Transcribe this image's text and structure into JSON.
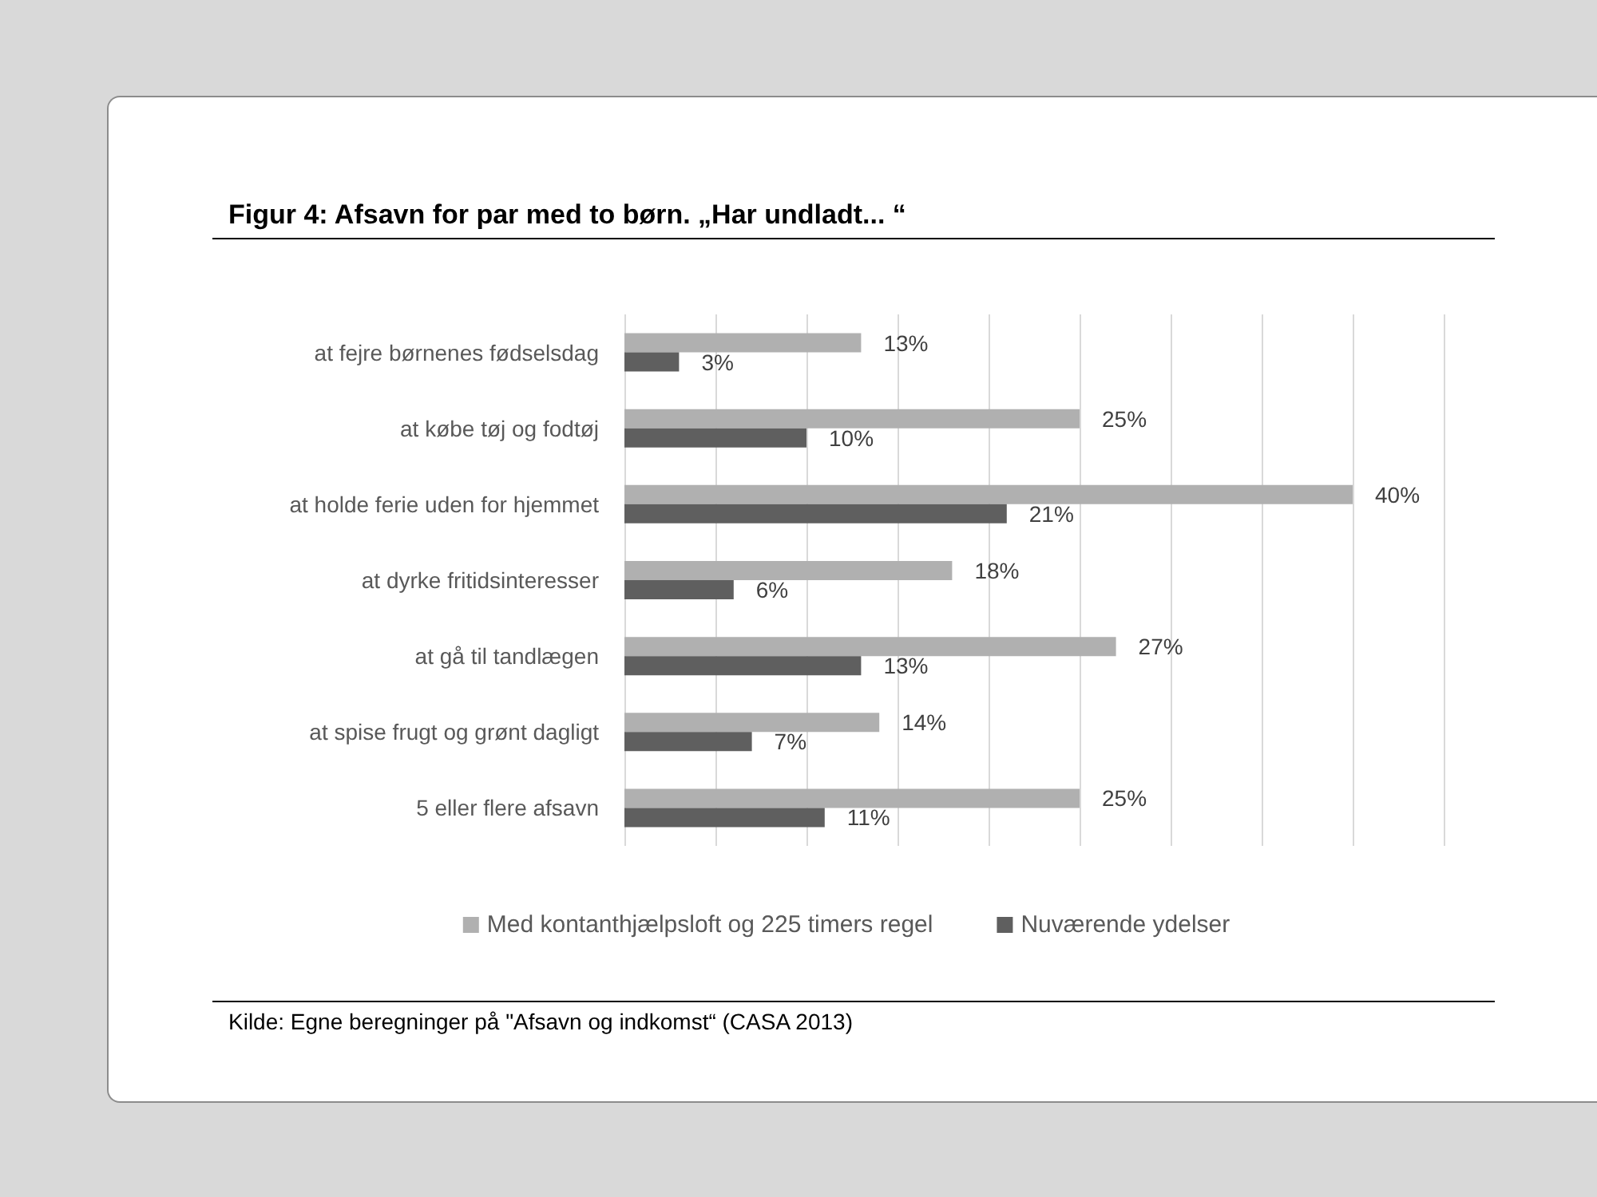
{
  "chart_data": {
    "type": "bar",
    "orientation": "horizontal",
    "title": "Figur 4: Afsavn for par med to børn. „Har undladt... “",
    "categories": [
      "at fejre børnenes fødselsdag",
      "at købe tøj og fodtøj",
      "at holde ferie uden for hjemmet",
      "at dyrke fritidsinteresser",
      "at gå til tandlægen",
      "at spise frugt og grønt dagligt",
      "5 eller flere afsavn"
    ],
    "series": [
      {
        "name": "Med kontanthjælpsloft og 225 timers regel",
        "color": "#b0b0b0",
        "values": [
          13,
          25,
          40,
          18,
          27,
          14,
          25
        ],
        "value_labels": [
          "13%",
          "25%",
          "40%",
          "18%",
          "27%",
          "14%",
          "25%"
        ]
      },
      {
        "name": "Nuværende ydelser",
        "color": "#5f5f5f",
        "values": [
          3,
          10,
          21,
          6,
          13,
          7,
          11
        ],
        "value_labels": [
          "3%",
          "10%",
          "21%",
          "6%",
          "13%",
          "7%",
          "11%"
        ]
      }
    ],
    "xlim": [
      0,
      45
    ],
    "xticks": [
      0,
      5,
      10,
      15,
      20,
      25,
      30,
      35,
      40,
      45
    ],
    "tick_labels": "y",
    "grid": "x",
    "legend": "bottom",
    "annotations": [
      "Kilde: Egne beregninger på \"Afsavn og indkomst“ (CASA 2013)"
    ]
  }
}
